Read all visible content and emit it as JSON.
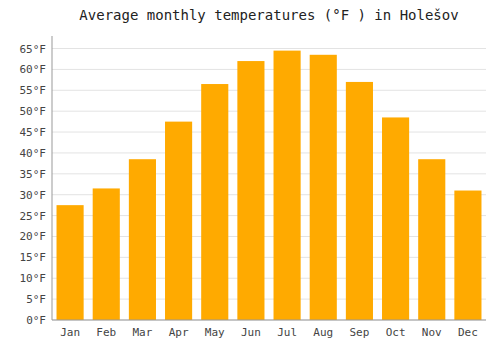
{
  "chart_data": {
    "type": "bar",
    "title": "Average monthly temperatures (°F ) in Holešov",
    "categories": [
      "Jan",
      "Feb",
      "Mar",
      "Apr",
      "May",
      "Jun",
      "Jul",
      "Aug",
      "Sep",
      "Oct",
      "Nov",
      "Dec"
    ],
    "values": [
      27.5,
      31.5,
      38.5,
      47.5,
      56.5,
      62.0,
      64.5,
      63.5,
      57.0,
      48.5,
      38.5,
      31.0
    ],
    "color": "#FFAA00",
    "ylim": [
      0,
      68
    ],
    "yticks": [
      {
        "value": 0,
        "label": "0°F"
      },
      {
        "value": 5,
        "label": "5°F"
      },
      {
        "value": 10,
        "label": "10°F"
      },
      {
        "value": 15,
        "label": "15°F"
      },
      {
        "value": 20,
        "label": "20°F"
      },
      {
        "value": 25,
        "label": "25°F"
      },
      {
        "value": 30,
        "label": "30°F"
      },
      {
        "value": 35,
        "label": "35°F"
      },
      {
        "value": 40,
        "label": "40°F"
      },
      {
        "value": 45,
        "label": "45°F"
      },
      {
        "value": 50,
        "label": "50°F"
      },
      {
        "value": 55,
        "label": "55°F"
      },
      {
        "value": 60,
        "label": "60°F"
      },
      {
        "value": 65,
        "label": "65°F"
      }
    ],
    "grid": true
  }
}
